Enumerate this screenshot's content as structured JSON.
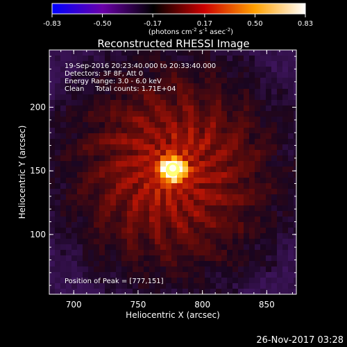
{
  "chart_data": {
    "type": "heatmap",
    "title": "Reconstructed RHESSI Image",
    "colorbar": {
      "ticks": [
        "-0.83",
        "-0.50",
        "-0.17",
        "0.17",
        "0.50",
        "0.83"
      ],
      "range": [
        -0.83,
        0.83
      ],
      "unit_label": {
        "prefix": "(photons cm",
        "exp1": "-2",
        "mid1": " s",
        "exp2": "-1",
        "mid2": " asec",
        "exp3": "-2",
        "suffix": ")"
      },
      "colors": [
        "#0000ff",
        "#6a00a8",
        "#000000",
        "#cc0000",
        "#ffa000",
        "#ffffff"
      ]
    },
    "info": {
      "line1": "19-Sep-2016 20:23:40.000 to 20:33:40.000",
      "line2": "Detectors: 3F 8F, Att 0",
      "line3": "Energy Range: 3.0 - 6.0 keV",
      "line4": "Clean     Total counts: 1.71E+04"
    },
    "peak_label": "Position of Peak = [777,151]",
    "peak": {
      "x": 777,
      "y": 151
    },
    "xlabel": "Heliocentric X (arcsec)",
    "ylabel": "Heliocentric Y (arcsec)",
    "xlim": [
      681,
      873
    ],
    "ylim": [
      53,
      245
    ],
    "xticks": [
      "700",
      "750",
      "800",
      "850"
    ],
    "yticks": [
      "100",
      "150",
      "200"
    ]
  },
  "footer": {
    "date": "26-Nov-2017 03:28"
  }
}
